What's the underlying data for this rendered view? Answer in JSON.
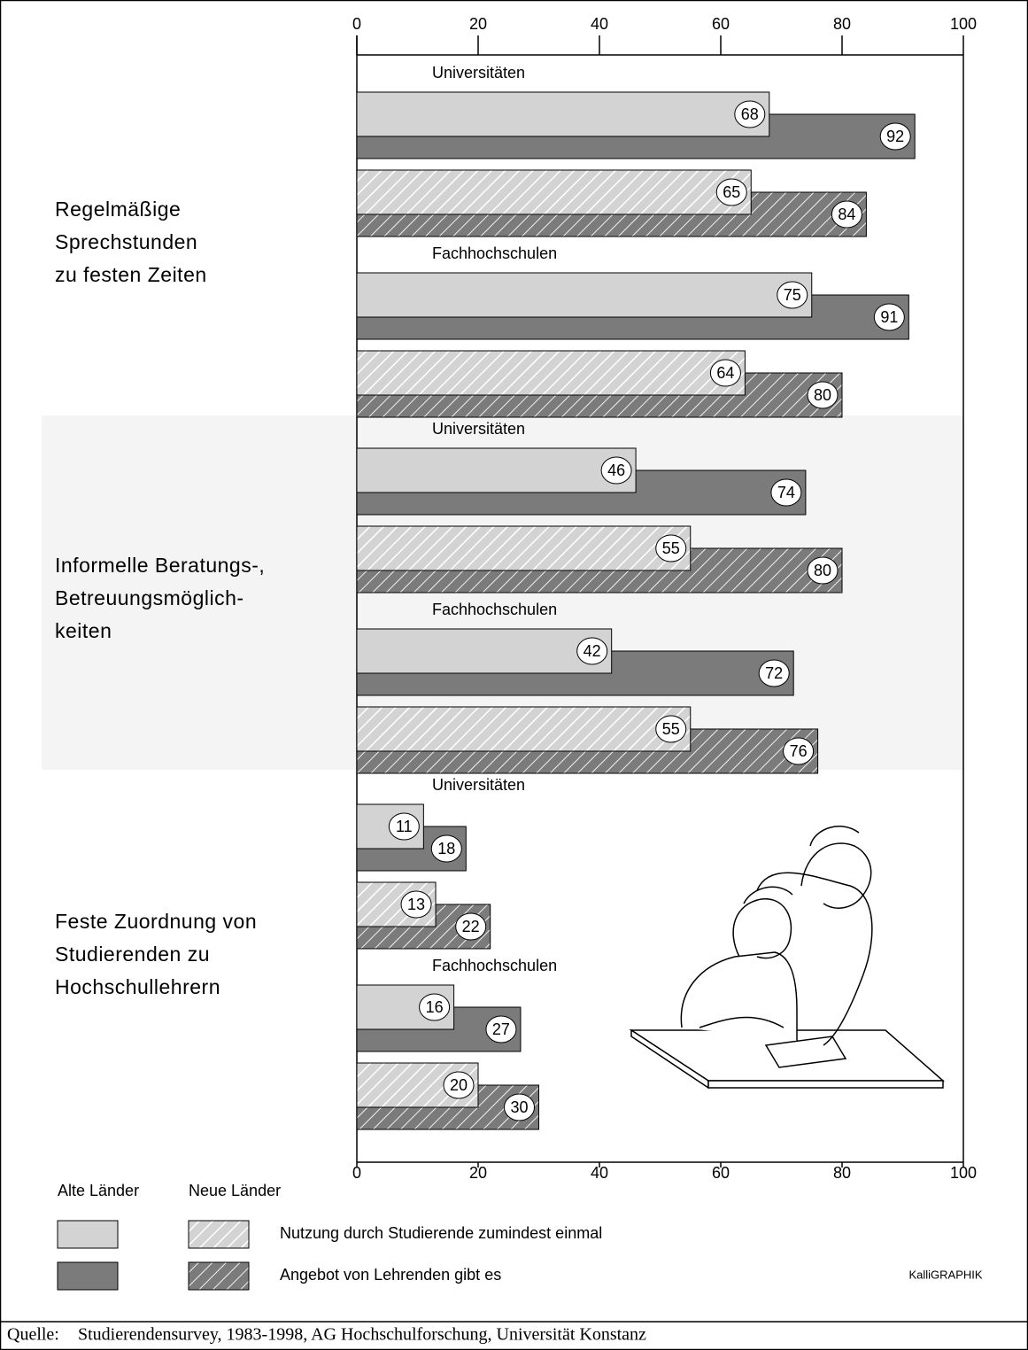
{
  "chart_data": {
    "type": "bar",
    "xlim": [
      0,
      100
    ],
    "xticks": [
      0,
      20,
      40,
      60,
      80,
      100
    ],
    "colors": [
      "#d3d3d3",
      "#7b7b7b"
    ],
    "band_color": "#f4f4f4",
    "groups": [
      {
        "label_lines": [
          "Regelmäßige",
          "Sprechstunden",
          "zu festen Zeiten"
        ],
        "shaded": false,
        "subgroups": [
          {
            "label": "Universitäten",
            "alte": [
              68,
              92
            ],
            "neue": [
              65,
              84
            ]
          },
          {
            "label": "Fachhochschulen",
            "alte": [
              75,
              91
            ],
            "neue": [
              64,
              80
            ]
          }
        ]
      },
      {
        "label_lines": [
          "Informelle Beratungs-,",
          "Betreuungsmöglich-",
          "keiten"
        ],
        "shaded": true,
        "subgroups": [
          {
            "label": "Universitäten",
            "alte": [
              46,
              74
            ],
            "neue": [
              55,
              80
            ]
          },
          {
            "label": "Fachhochschulen",
            "alte": [
              42,
              72
            ],
            "neue": [
              55,
              76
            ]
          }
        ]
      },
      {
        "label_lines": [
          "Feste Zuordnung von",
          "Studierenden zu",
          "Hochschullehrern"
        ],
        "shaded": false,
        "subgroups": [
          {
            "label": "Universitäten",
            "alte": [
              11,
              18
            ],
            "neue": [
              13,
              22
            ]
          },
          {
            "label": "Fachhochschulen",
            "alte": [
              16,
              27
            ],
            "neue": [
              20,
              30
            ]
          }
        ]
      }
    ],
    "legend": {
      "regions": [
        "Alte Länder",
        "Neue Länder"
      ],
      "measures": [
        "Nutzung durch Studierende zumindest einmal",
        "Angebot von Lehrenden gibt es"
      ]
    },
    "credit": "KalliGRAPHIK",
    "source_label": "Quelle:",
    "source": "Studierendensurvey, 1983-1998, AG Hochschulforschung, Universität Konstanz"
  }
}
